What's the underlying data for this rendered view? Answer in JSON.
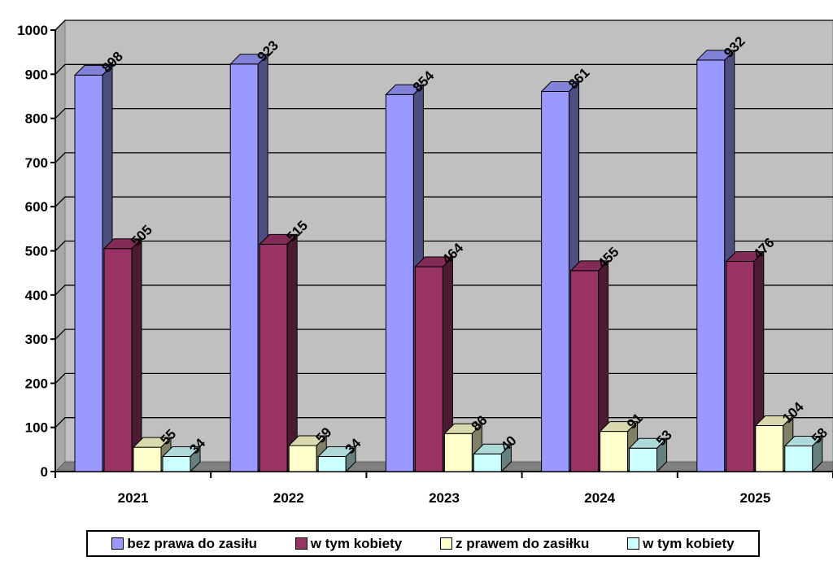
{
  "chart_data": {
    "type": "bar",
    "title": "",
    "xlabel": "",
    "ylabel": "",
    "categories": [
      "2021",
      "2022",
      "2023",
      "2024",
      "2025"
    ],
    "ylim": [
      0,
      1000
    ],
    "yticks": [
      "0",
      "100",
      "200",
      "300",
      "400",
      "500",
      "600",
      "700",
      "800",
      "900",
      "1000"
    ],
    "grid": true,
    "legend_position": "bottom",
    "series": [
      {
        "name": "bez prawa do zasiłu",
        "values": [
          898,
          923,
          854,
          861,
          932
        ],
        "color": "#9999FF"
      },
      {
        "name": "w tym kobiety",
        "values": [
          505,
          515,
          464,
          455,
          476
        ],
        "color": "#993366"
      },
      {
        "name": "z prawem do zasiłku",
        "values": [
          55,
          59,
          86,
          91,
          104
        ],
        "color": "#FFFFCC"
      },
      {
        "name": "w tym kobiety",
        "values": [
          34,
          34,
          40,
          53,
          58
        ],
        "color": "#CCFFFF"
      }
    ],
    "colors": {
      "plot_background": "#C0C0C0",
      "floor": "#808080",
      "gridline": "#000000"
    }
  }
}
